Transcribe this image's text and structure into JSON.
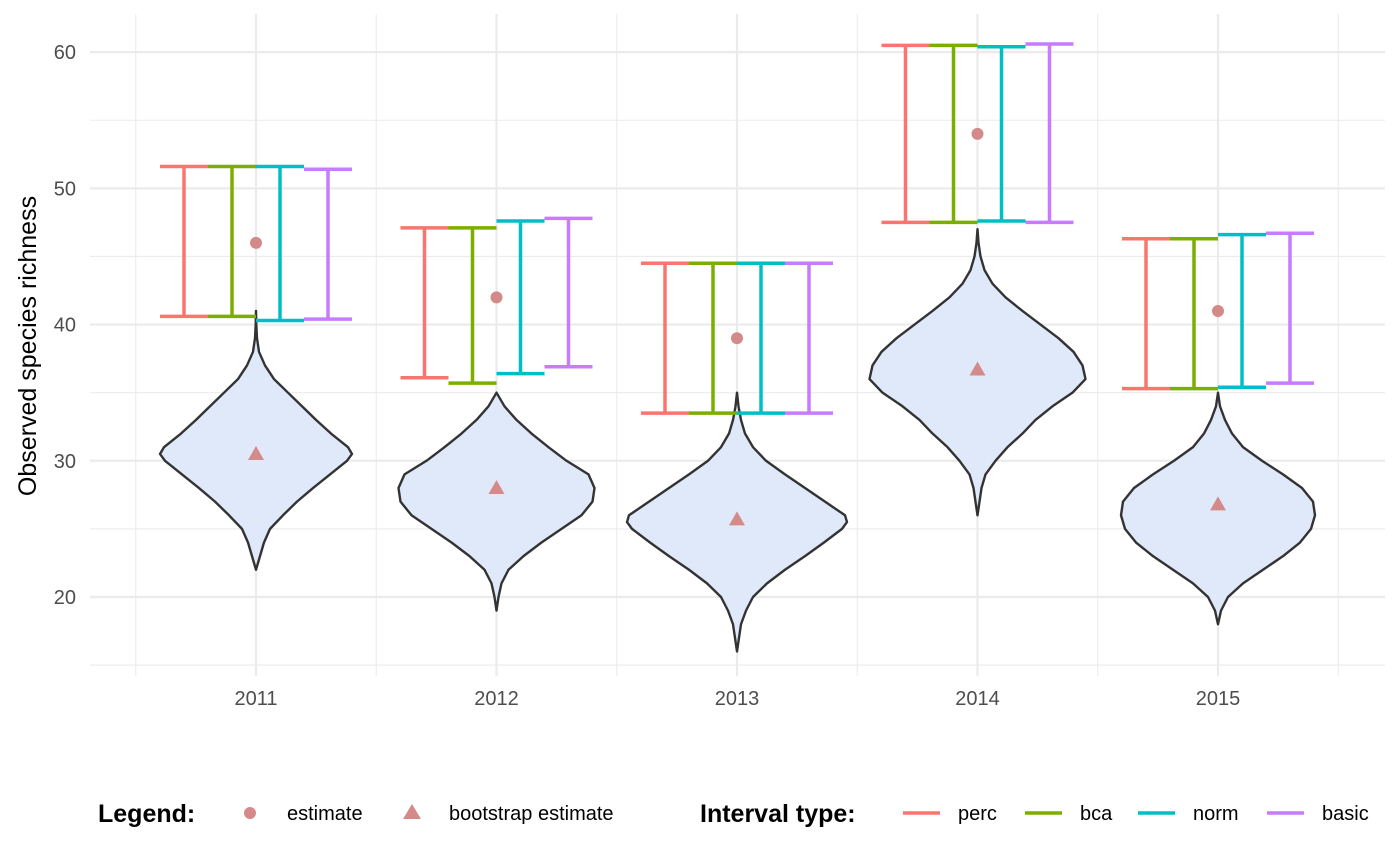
{
  "chart_data": {
    "type": "violin",
    "title": "",
    "xlabel": "",
    "ylabel": "Observed species richness",
    "categories": [
      "2011",
      "2012",
      "2013",
      "2014",
      "2015"
    ],
    "ylim": [
      14.2,
      62.8
    ],
    "y_ticks": [
      20,
      30,
      40,
      50,
      60
    ],
    "grid": true,
    "legend_position": "bottom",
    "point_legend": {
      "title": "Legend:",
      "items": [
        {
          "label": "estimate",
          "shape": "circle"
        },
        {
          "label": "bootstrap estimate",
          "shape": "triangle"
        }
      ],
      "color": "#d58a8a"
    },
    "estimate": [
      46,
      42,
      39,
      54,
      41
    ],
    "bootstrap_estimate": [
      30.5,
      28,
      25.7,
      36.7,
      26.8
    ],
    "intervals": {
      "title": "Interval type:",
      "series": [
        {
          "name": "perc",
          "color": "#F8766D",
          "lower": [
            40.6,
            36.1,
            33.5,
            47.5,
            35.3
          ],
          "upper": [
            51.6,
            47.1,
            44.5,
            60.5,
            46.3
          ]
        },
        {
          "name": "bca",
          "color": "#7CAE00",
          "lower": [
            40.6,
            35.7,
            33.5,
            47.5,
            35.3
          ],
          "upper": [
            51.6,
            47.1,
            44.5,
            60.5,
            46.3
          ]
        },
        {
          "name": "norm",
          "color": "#00BFC4",
          "lower": [
            40.3,
            36.4,
            33.5,
            47.6,
            35.4
          ],
          "upper": [
            51.6,
            47.6,
            44.5,
            60.4,
            46.6
          ]
        },
        {
          "name": "basic",
          "color": "#C77CFF",
          "lower": [
            40.4,
            36.9,
            33.5,
            47.5,
            35.7
          ],
          "upper": [
            51.4,
            47.8,
            44.5,
            60.6,
            46.7
          ]
        }
      ]
    },
    "violins": {
      "fill": "#e0e9f9",
      "stroke": "#333333",
      "groups": [
        {
          "min": 22,
          "max": 41,
          "profile": [
            [
              22,
              0
            ],
            [
              23,
              4
            ],
            [
              24,
              8
            ],
            [
              25,
              14
            ],
            [
              26,
              27
            ],
            [
              27,
              41
            ],
            [
              28,
              57
            ],
            [
              29,
              74
            ],
            [
              30,
              91
            ],
            [
              30.5,
              96
            ],
            [
              31,
              92
            ],
            [
              32,
              75
            ],
            [
              33,
              60
            ],
            [
              34,
              46
            ],
            [
              35,
              32
            ],
            [
              36,
              18
            ],
            [
              37,
              9
            ],
            [
              38,
              3
            ],
            [
              39,
              1
            ],
            [
              40,
              0.3
            ],
            [
              41,
              0
            ]
          ]
        },
        {
          "min": 19,
          "max": 35,
          "profile": [
            [
              19,
              0
            ],
            [
              20,
              2
            ],
            [
              21,
              5
            ],
            [
              22,
              12
            ],
            [
              23,
              27
            ],
            [
              24,
              45
            ],
            [
              25,
              65
            ],
            [
              26,
              85
            ],
            [
              27,
              96
            ],
            [
              28,
              98
            ],
            [
              29,
              92
            ],
            [
              30,
              70
            ],
            [
              31,
              52
            ],
            [
              32,
              35
            ],
            [
              33,
              20
            ],
            [
              34,
              8
            ],
            [
              35,
              0
            ]
          ]
        },
        {
          "min": 16,
          "max": 35,
          "profile": [
            [
              16,
              0
            ],
            [
              17,
              2
            ],
            [
              18,
              4
            ],
            [
              19,
              9
            ],
            [
              20,
              16
            ],
            [
              21,
              30
            ],
            [
              22,
              48
            ],
            [
              23,
              68
            ],
            [
              24,
              87
            ],
            [
              25,
              105
            ],
            [
              25.5,
              110
            ],
            [
              26,
              108
            ],
            [
              27,
              88
            ],
            [
              28,
              68
            ],
            [
              29,
              48
            ],
            [
              30,
              29
            ],
            [
              31,
              16
            ],
            [
              32,
              8
            ],
            [
              33,
              4
            ],
            [
              34,
              1.5
            ],
            [
              35,
              0
            ]
          ]
        },
        {
          "min": 26,
          "max": 47,
          "profile": [
            [
              26,
              0
            ],
            [
              27,
              2
            ],
            [
              28,
              4
            ],
            [
              29,
              8
            ],
            [
              30,
              18
            ],
            [
              31,
              30
            ],
            [
              32,
              45
            ],
            [
              33,
              58
            ],
            [
              34,
              75
            ],
            [
              35,
              95
            ],
            [
              36,
              108
            ],
            [
              37,
              105
            ],
            [
              38,
              96
            ],
            [
              39,
              81
            ],
            [
              40,
              63
            ],
            [
              41,
              45
            ],
            [
              42,
              28
            ],
            [
              43,
              15
            ],
            [
              44,
              7
            ],
            [
              45,
              3
            ],
            [
              46,
              1
            ],
            [
              47,
              0
            ]
          ]
        },
        {
          "min": 18,
          "max": 35,
          "profile": [
            [
              18,
              0
            ],
            [
              19,
              3
            ],
            [
              20,
              10
            ],
            [
              21,
              25
            ],
            [
              22,
              45
            ],
            [
              23,
              65
            ],
            [
              24,
              82
            ],
            [
              25,
              93
            ],
            [
              26,
              97
            ],
            [
              27,
              95
            ],
            [
              28,
              84
            ],
            [
              29,
              65
            ],
            [
              30,
              44
            ],
            [
              31,
              25
            ],
            [
              32,
              14
            ],
            [
              33,
              7
            ],
            [
              34,
              2
            ],
            [
              35,
              0
            ]
          ]
        }
      ]
    }
  }
}
